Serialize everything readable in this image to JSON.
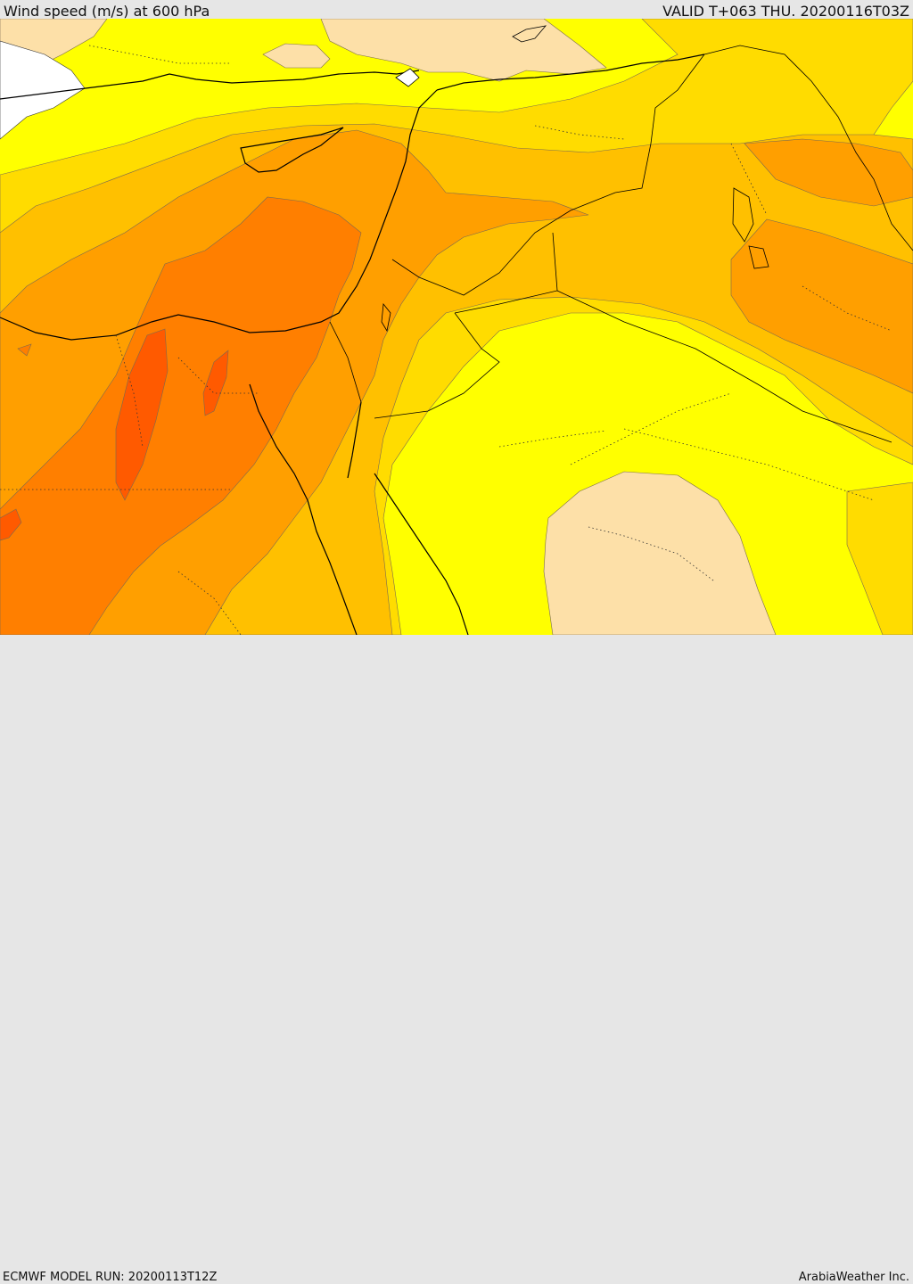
{
  "header": {
    "title": "Wind speed (m/s) at 600 hPa",
    "valid_time": "VALID T+063 THU. 20200116T03Z"
  },
  "footer": {
    "model_run": "ECMWF MODEL RUN: 20200113T12Z",
    "credit": "ArabiaWeather Inc."
  },
  "map": {
    "variable": "wind speed",
    "level": "600 hPa",
    "shading_colors": {
      "light": "#fde0a8",
      "yellow": "#ffff00",
      "gold": "#ffdc00",
      "amber": "#ffc000",
      "orange": "#ff9f00",
      "dark_orange": "#ff7f00",
      "red_orange": "#ff5a00"
    }
  }
}
